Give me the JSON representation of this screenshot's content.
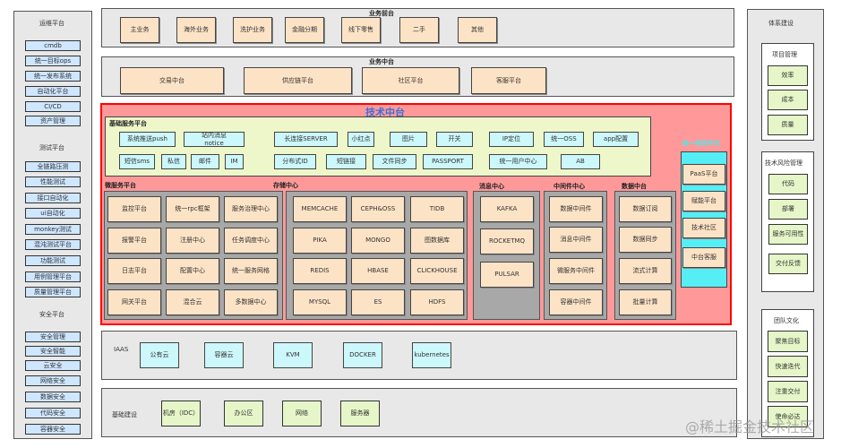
{
  "left_panel": {
    "ops": {
      "title": "运维平台",
      "items": [
        "cmdb",
        "统一目标ops",
        "统一发布系统",
        "自动化平台",
        "CI/CD",
        "资产管理"
      ]
    },
    "test": {
      "title": "测试平台",
      "items": [
        "全链路压测",
        "性能测试",
        "接口自动化",
        "ui自动化",
        "monkey测试",
        "混沌测试平台",
        "功能测试",
        "用例管理平台",
        "质量管理平台"
      ]
    },
    "security": {
      "title": "安全平台",
      "items": [
        "安全管理",
        "安全智能",
        "云安全",
        "网络安全",
        "数据安全",
        "代码安全",
        "容器安全"
      ]
    }
  },
  "business_front": {
    "title": "业务前台",
    "items": [
      "主业务",
      "海外业务",
      "洗护业务",
      "金融分期",
      "线下零售",
      "二手",
      "其他"
    ]
  },
  "business_middle": {
    "title": "业务中台",
    "items": [
      "交易中台",
      "供应链平台",
      "社区平台",
      "客服平台"
    ]
  },
  "tech_middle": {
    "title": "技术中台",
    "basic_services": {
      "title": "基础服务平台",
      "row1": [
        "系统推送push",
        "站内消息\nnotice",
        "长连接SERVER",
        "小红点",
        "图片",
        "开关",
        "IP定位",
        "统一OSS",
        "app配置"
      ],
      "row2": [
        "短信sms",
        "私信",
        "邮件",
        "IM",
        "分布式ID",
        "短链接",
        "文件同步",
        "PASSPORT",
        "统一用户中心",
        "AB"
      ]
    },
    "microservice": {
      "title": "微服务平台",
      "items": [
        "监控平台",
        "统一rpc框架",
        "服务治理中心",
        "报警平台",
        "注册中心",
        "任务调度中心",
        "日志平台",
        "配置中心",
        "统一服务网格",
        "网关平台",
        "混合云",
        "多数据中心"
      ]
    },
    "storage": {
      "title": "存储中心",
      "items": [
        "MEMCACHE",
        "CEPH&OSS",
        "TIDB",
        "PIKA",
        "MONGO",
        "图数据库",
        "REDIS",
        "HBASE",
        "CLICKHOUSE",
        "MYSQL",
        "ES",
        "HDFS"
      ]
    },
    "message": {
      "title": "消息中心",
      "items": [
        "KAFKA",
        "ROCKETMQ",
        "PULSAR"
      ]
    },
    "middleware": {
      "title": "中间件中心",
      "items": [
        "数据中间件",
        "消息中间件",
        "微服务中间件",
        "容器中间件"
      ]
    },
    "data": {
      "title": "数据中台",
      "items": [
        "数据订阅",
        "数据同步",
        "流式计算",
        "批量计算"
      ]
    },
    "unified": {
      "title": "统一研发平台",
      "items": [
        "PaaS平台",
        "赋能平台",
        "技术社区",
        "中台客服"
      ]
    }
  },
  "iaas": {
    "title": "IAAS",
    "items": [
      "公有云",
      "容器云",
      "KVM",
      "DOCKER",
      "kubernetes"
    ]
  },
  "infrastructure": {
    "title": "基础建设",
    "items": [
      "机房（IDC）",
      "办公区",
      "网络",
      "服务器"
    ]
  },
  "right_panel": {
    "title": "体系建设",
    "project": {
      "title": "项目管理",
      "items": [
        "效率",
        "成本",
        "质量"
      ]
    },
    "risk": {
      "title": "技术风险管理",
      "items": [
        "代码",
        "部署",
        "服务可用性",
        "交付反馈"
      ]
    },
    "culture": {
      "title": "团队文化",
      "items": [
        "聚焦目标",
        "快速迭代",
        "注重交付",
        "使命必达"
      ]
    }
  },
  "watermark": "@稀土掘金技术社区",
  "colors": {
    "tech_border": "#ff0000",
    "tech_fill": "#ff9999",
    "tech_title": "#3a6fd8",
    "item_peach": "#fde3c6",
    "item_blue": "#cfe6ff",
    "item_cyan": "#ccf7fb",
    "item_green": "#e6f6c8"
  }
}
